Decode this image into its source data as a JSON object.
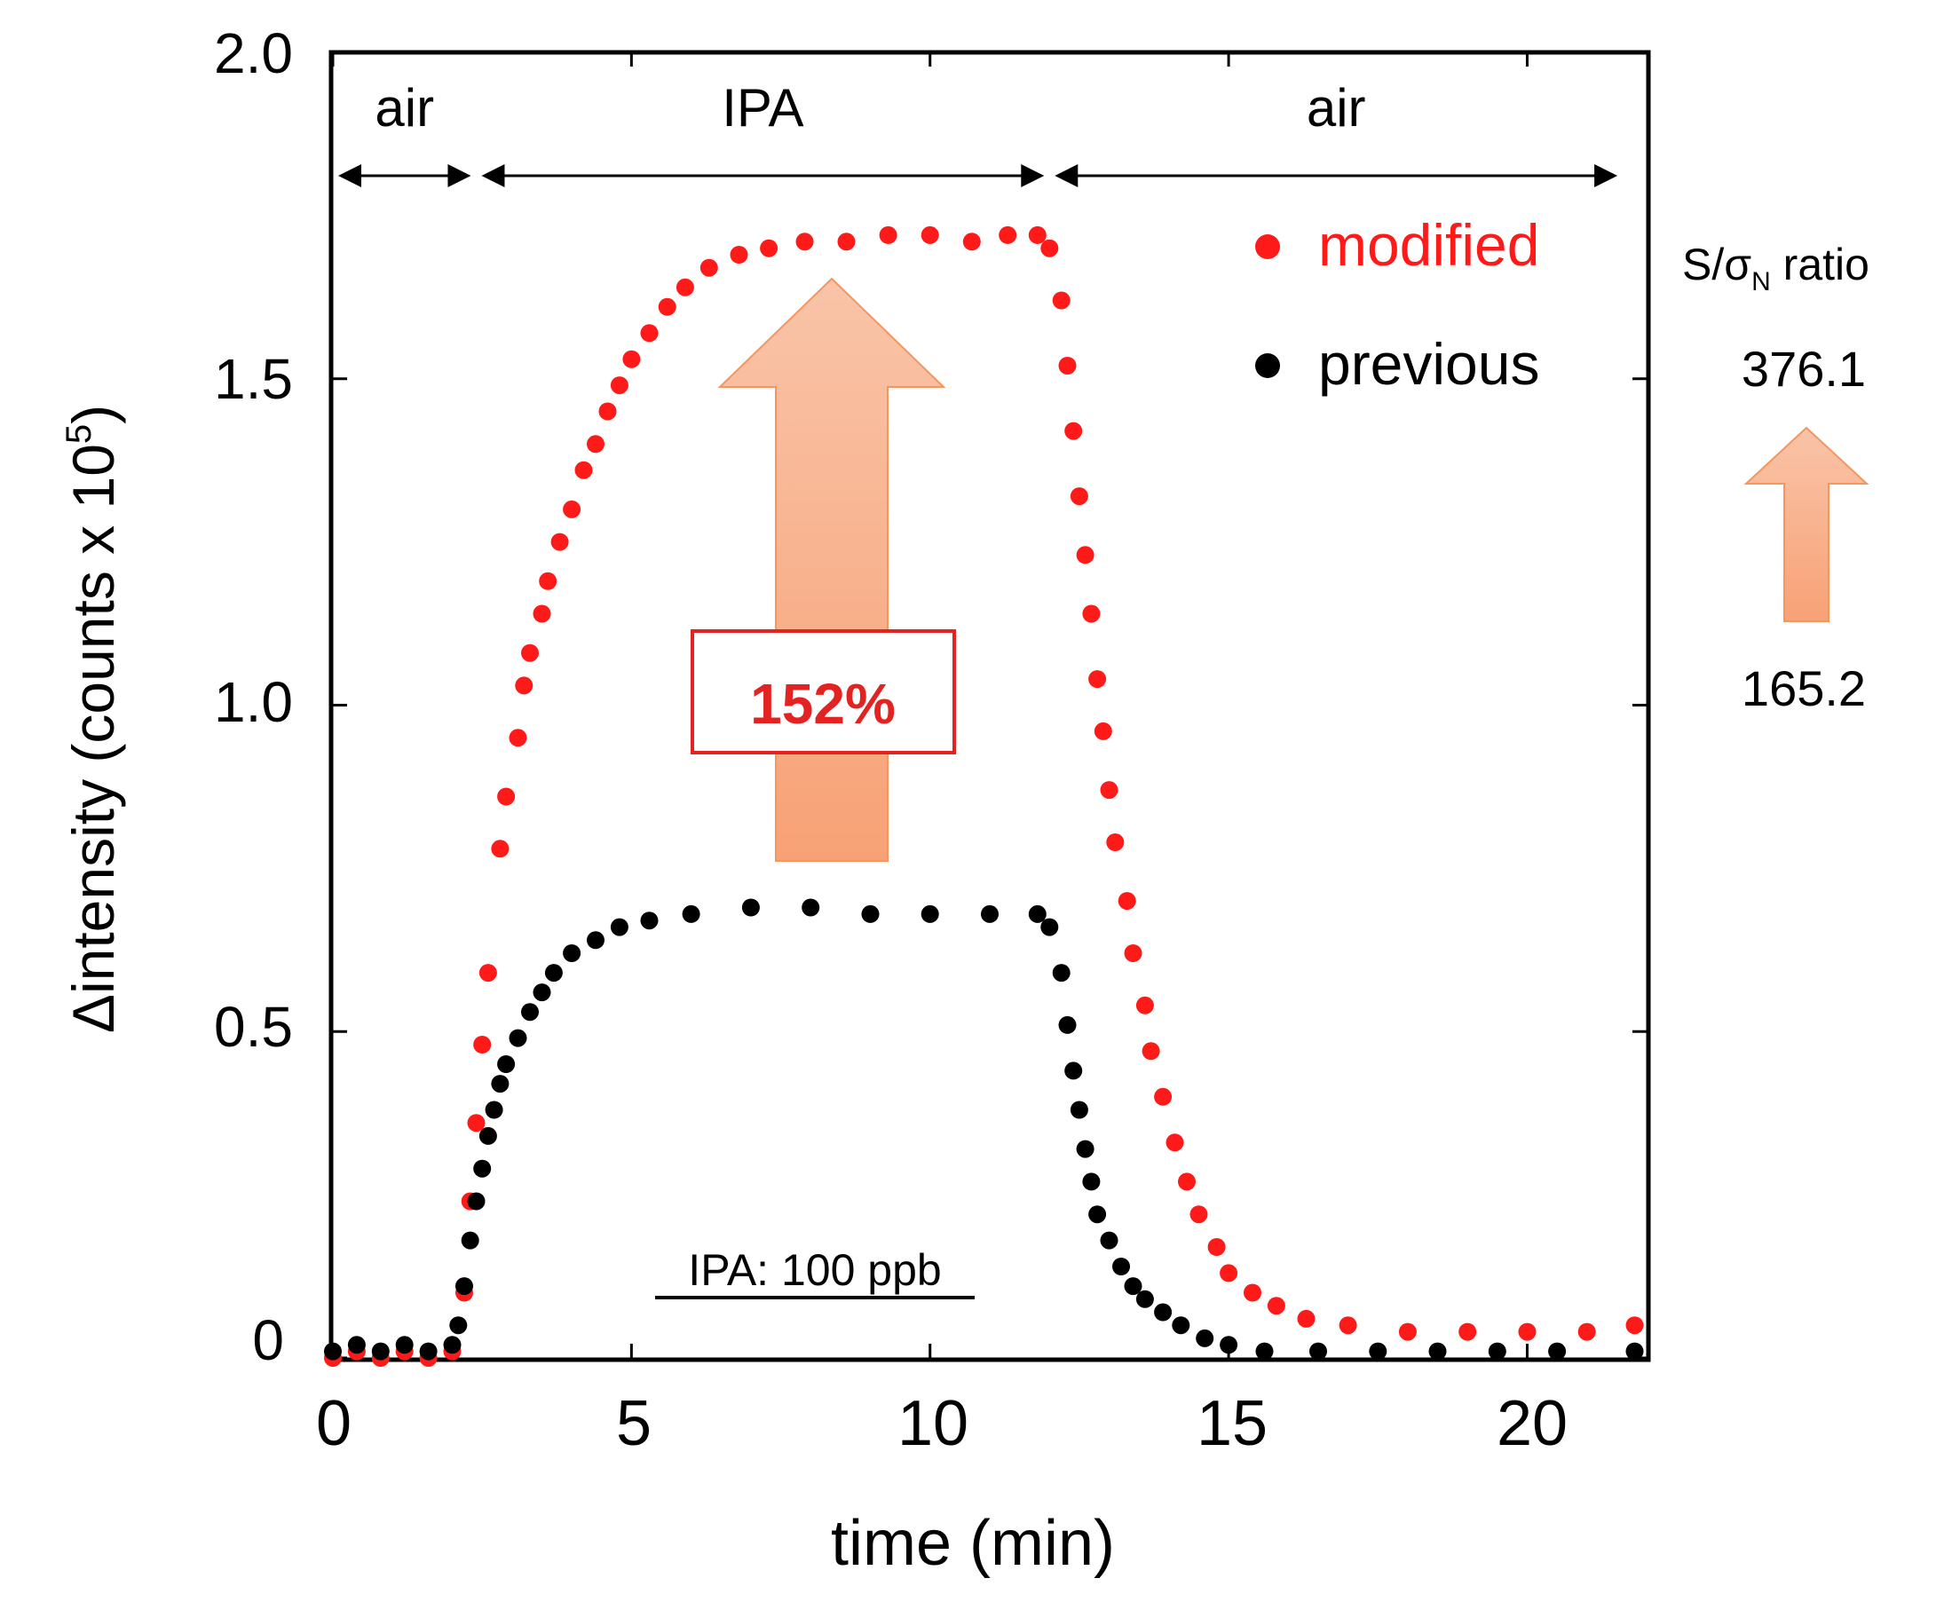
{
  "chart_data": {
    "type": "scatter",
    "title": "",
    "xlabel": "time (min)",
    "ylabel": "Δintensity (counts x 10",
    "ylabel_sup": "5",
    "ylabel_close": ")",
    "xlim": [
      0,
      22
    ],
    "ylim": [
      0,
      2.0
    ],
    "x_ticks": [
      0,
      5,
      10,
      15,
      20
    ],
    "x_tick_labels": [
      "0",
      "5",
      "10",
      "15",
      "20"
    ],
    "y_ticks": [
      0,
      0.5,
      1.0,
      1.5,
      2.0
    ],
    "y_tick_labels": [
      "0",
      "0.5",
      "1.0",
      "1.5",
      "2.0"
    ],
    "grid": false,
    "legend_position": "top-right",
    "series": [
      {
        "name": "modified",
        "color": "#ff1a1a",
        "points": [
          [
            0.0,
            0.0
          ],
          [
            0.4,
            0.01
          ],
          [
            0.8,
            0.0
          ],
          [
            1.2,
            0.01
          ],
          [
            1.6,
            0.0
          ],
          [
            2.0,
            0.01
          ],
          [
            2.2,
            0.1
          ],
          [
            2.3,
            0.24
          ],
          [
            2.4,
            0.36
          ],
          [
            2.5,
            0.48
          ],
          [
            2.6,
            0.59
          ],
          [
            2.8,
            0.78
          ],
          [
            2.9,
            0.86
          ],
          [
            3.1,
            0.95
          ],
          [
            3.2,
            1.03
          ],
          [
            3.3,
            1.08
          ],
          [
            3.5,
            1.14
          ],
          [
            3.6,
            1.19
          ],
          [
            3.8,
            1.25
          ],
          [
            4.0,
            1.3
          ],
          [
            4.2,
            1.36
          ],
          [
            4.4,
            1.4
          ],
          [
            4.6,
            1.45
          ],
          [
            4.8,
            1.49
          ],
          [
            5.0,
            1.53
          ],
          [
            5.3,
            1.57
          ],
          [
            5.6,
            1.61
          ],
          [
            5.9,
            1.64
          ],
          [
            6.3,
            1.67
          ],
          [
            6.8,
            1.69
          ],
          [
            7.3,
            1.7
          ],
          [
            7.9,
            1.71
          ],
          [
            8.6,
            1.71
          ],
          [
            9.3,
            1.72
          ],
          [
            10.0,
            1.72
          ],
          [
            10.7,
            1.71
          ],
          [
            11.3,
            1.72
          ],
          [
            11.8,
            1.72
          ],
          [
            12.0,
            1.7
          ],
          [
            12.2,
            1.62
          ],
          [
            12.3,
            1.52
          ],
          [
            12.4,
            1.42
          ],
          [
            12.5,
            1.32
          ],
          [
            12.6,
            1.23
          ],
          [
            12.7,
            1.14
          ],
          [
            12.8,
            1.04
          ],
          [
            12.9,
            0.96
          ],
          [
            13.0,
            0.87
          ],
          [
            13.1,
            0.79
          ],
          [
            13.3,
            0.7
          ],
          [
            13.4,
            0.62
          ],
          [
            13.6,
            0.54
          ],
          [
            13.7,
            0.47
          ],
          [
            13.9,
            0.4
          ],
          [
            14.1,
            0.33
          ],
          [
            14.3,
            0.27
          ],
          [
            14.5,
            0.22
          ],
          [
            14.8,
            0.17
          ],
          [
            15.0,
            0.13
          ],
          [
            15.4,
            0.1
          ],
          [
            15.8,
            0.08
          ],
          [
            16.3,
            0.06
          ],
          [
            17.0,
            0.05
          ],
          [
            18.0,
            0.04
          ],
          [
            19.0,
            0.04
          ],
          [
            20.0,
            0.04
          ],
          [
            21.0,
            0.04
          ],
          [
            21.8,
            0.05
          ]
        ]
      },
      {
        "name": "previous",
        "color": "#000000",
        "points": [
          [
            0.0,
            0.01
          ],
          [
            0.4,
            0.02
          ],
          [
            0.8,
            0.01
          ],
          [
            1.2,
            0.02
          ],
          [
            1.6,
            0.01
          ],
          [
            2.0,
            0.02
          ],
          [
            2.1,
            0.05
          ],
          [
            2.2,
            0.11
          ],
          [
            2.3,
            0.18
          ],
          [
            2.4,
            0.24
          ],
          [
            2.5,
            0.29
          ],
          [
            2.6,
            0.34
          ],
          [
            2.7,
            0.38
          ],
          [
            2.8,
            0.42
          ],
          [
            2.9,
            0.45
          ],
          [
            3.1,
            0.49
          ],
          [
            3.3,
            0.53
          ],
          [
            3.5,
            0.56
          ],
          [
            3.7,
            0.59
          ],
          [
            4.0,
            0.62
          ],
          [
            4.4,
            0.64
          ],
          [
            4.8,
            0.66
          ],
          [
            5.3,
            0.67
          ],
          [
            6.0,
            0.68
          ],
          [
            7.0,
            0.69
          ],
          [
            8.0,
            0.69
          ],
          [
            9.0,
            0.68
          ],
          [
            10.0,
            0.68
          ],
          [
            11.0,
            0.68
          ],
          [
            11.8,
            0.68
          ],
          [
            12.0,
            0.66
          ],
          [
            12.2,
            0.59
          ],
          [
            12.3,
            0.51
          ],
          [
            12.4,
            0.44
          ],
          [
            12.5,
            0.38
          ],
          [
            12.6,
            0.32
          ],
          [
            12.7,
            0.27
          ],
          [
            12.8,
            0.22
          ],
          [
            13.0,
            0.18
          ],
          [
            13.2,
            0.14
          ],
          [
            13.4,
            0.11
          ],
          [
            13.6,
            0.09
          ],
          [
            13.9,
            0.07
          ],
          [
            14.2,
            0.05
          ],
          [
            14.6,
            0.03
          ],
          [
            15.0,
            0.02
          ],
          [
            15.6,
            0.01
          ],
          [
            16.5,
            0.01
          ],
          [
            17.5,
            0.01
          ],
          [
            18.5,
            0.01
          ],
          [
            19.5,
            0.01
          ],
          [
            20.5,
            0.01
          ],
          [
            21.8,
            0.01
          ]
        ]
      }
    ],
    "phases": [
      {
        "label": "air",
        "from": 0,
        "to": 2.4
      },
      {
        "label": "IPA",
        "from": 2.4,
        "to": 12.0
      },
      {
        "label": "air",
        "from": 12.0,
        "to": 21.6
      }
    ],
    "annotations": {
      "increase_label": "152%",
      "concentration_label": "IPA: 100 ppb",
      "ratio_title_main": "S/σ",
      "ratio_title_sub": "N",
      "ratio_title_end": " ratio",
      "ratio_high": "376.1",
      "ratio_low": "165.2"
    }
  },
  "colors": {
    "arrow_top": "#f9c4a8",
    "arrow_bottom": "#f8a176",
    "arrow_stroke": "#f39660",
    "label_box": "#e32222"
  }
}
